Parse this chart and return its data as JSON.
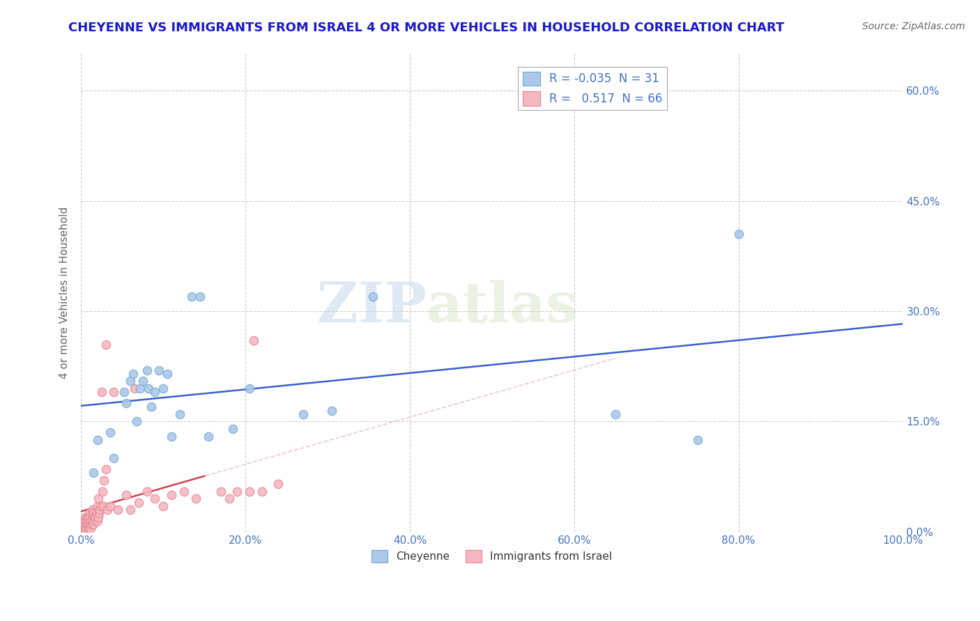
{
  "title": "CHEYENNE VS IMMIGRANTS FROM ISRAEL 4 OR MORE VEHICLES IN HOUSEHOLD CORRELATION CHART",
  "source": "Source: ZipAtlas.com",
  "ylabel": "4 or more Vehicles in Household",
  "xlim": [
    0,
    100
  ],
  "ylim": [
    0,
    65
  ],
  "xticks": [
    0,
    20,
    40,
    60,
    80,
    100
  ],
  "xticklabels": [
    "0.0%",
    "20.0%",
    "40.0%",
    "60.0%",
    "80.0%",
    "100.0%"
  ],
  "yticks": [
    0,
    15,
    30,
    45,
    60
  ],
  "yticklabels_right": [
    "0.0%",
    "15.0%",
    "30.0%",
    "45.0%",
    "60.0%"
  ],
  "cheyenne_color": "#aec6e8",
  "cheyenne_edge": "#6aaed6",
  "israel_color": "#f4b8c1",
  "israel_edge": "#e8828e",
  "trend_cheyenne_color": "#3a5fcd",
  "trend_israel_color": "#d44050",
  "trend_israel_dashed_color": "#e8a0a8",
  "legend_r_cheyenne": "-0.035",
  "legend_n_cheyenne": "31",
  "legend_r_israel": "0.517",
  "legend_n_israel": "66",
  "cheyenne_x": [
    1.5,
    2.0,
    3.5,
    4.0,
    5.2,
    5.5,
    6.0,
    6.3,
    6.8,
    7.2,
    7.5,
    8.0,
    8.2,
    8.5,
    9.0,
    9.5,
    10.0,
    10.5,
    11.0,
    12.0,
    13.5,
    14.5,
    15.5,
    18.5,
    20.5,
    27.0,
    30.5,
    35.5,
    65.0,
    75.0,
    80.0
  ],
  "cheyenne_y": [
    8.0,
    12.5,
    13.5,
    10.0,
    19.0,
    17.5,
    20.5,
    21.5,
    15.0,
    19.5,
    20.5,
    22.0,
    19.5,
    17.0,
    19.0,
    22.0,
    19.5,
    21.5,
    13.0,
    16.0,
    32.0,
    32.0,
    13.0,
    14.0,
    19.5,
    16.0,
    16.5,
    32.0,
    16.0,
    12.5,
    40.5
  ],
  "israel_x": [
    0.2,
    0.3,
    0.3,
    0.4,
    0.4,
    0.5,
    0.5,
    0.5,
    0.6,
    0.6,
    0.7,
    0.7,
    0.8,
    0.8,
    0.9,
    0.9,
    1.0,
    1.0,
    1.1,
    1.1,
    1.2,
    1.2,
    1.3,
    1.3,
    1.4,
    1.4,
    1.5,
    1.5,
    1.6,
    1.7,
    1.8,
    1.9,
    2.0,
    2.0,
    2.1,
    2.1,
    2.2,
    2.3,
    2.4,
    2.5,
    2.6,
    2.7,
    2.8,
    3.0,
    3.2,
    3.5,
    4.0,
    4.5,
    5.5,
    6.0,
    6.5,
    7.0,
    8.0,
    9.0,
    10.0,
    11.0,
    12.5,
    14.0,
    17.0,
    18.0,
    19.0,
    20.5,
    21.0,
    22.0,
    24.0,
    3.0
  ],
  "israel_y": [
    0.3,
    0.5,
    1.0,
    0.5,
    1.5,
    0.3,
    1.0,
    2.0,
    0.5,
    1.5,
    1.0,
    2.0,
    0.5,
    1.5,
    1.0,
    2.0,
    0.5,
    2.5,
    1.0,
    2.0,
    0.5,
    1.5,
    1.0,
    2.5,
    1.5,
    3.0,
    1.0,
    2.5,
    2.0,
    1.5,
    2.0,
    2.5,
    1.5,
    3.5,
    2.0,
    4.5,
    2.5,
    3.0,
    3.5,
    19.0,
    5.5,
    3.5,
    7.0,
    8.5,
    3.0,
    3.5,
    19.0,
    3.0,
    5.0,
    3.0,
    19.5,
    4.0,
    5.5,
    4.5,
    3.5,
    5.0,
    5.5,
    4.5,
    5.5,
    4.5,
    5.5,
    5.5,
    26.0,
    5.5,
    6.5,
    25.5
  ],
  "watermark_zip": "ZIP",
  "watermark_atlas": "atlas",
  "background_color": "#ffffff",
  "grid_color": "#cccccc",
  "title_color": "#1a1acc",
  "axis_label_color": "#666666",
  "tick_color": "#4472c4",
  "marker_size": 80
}
